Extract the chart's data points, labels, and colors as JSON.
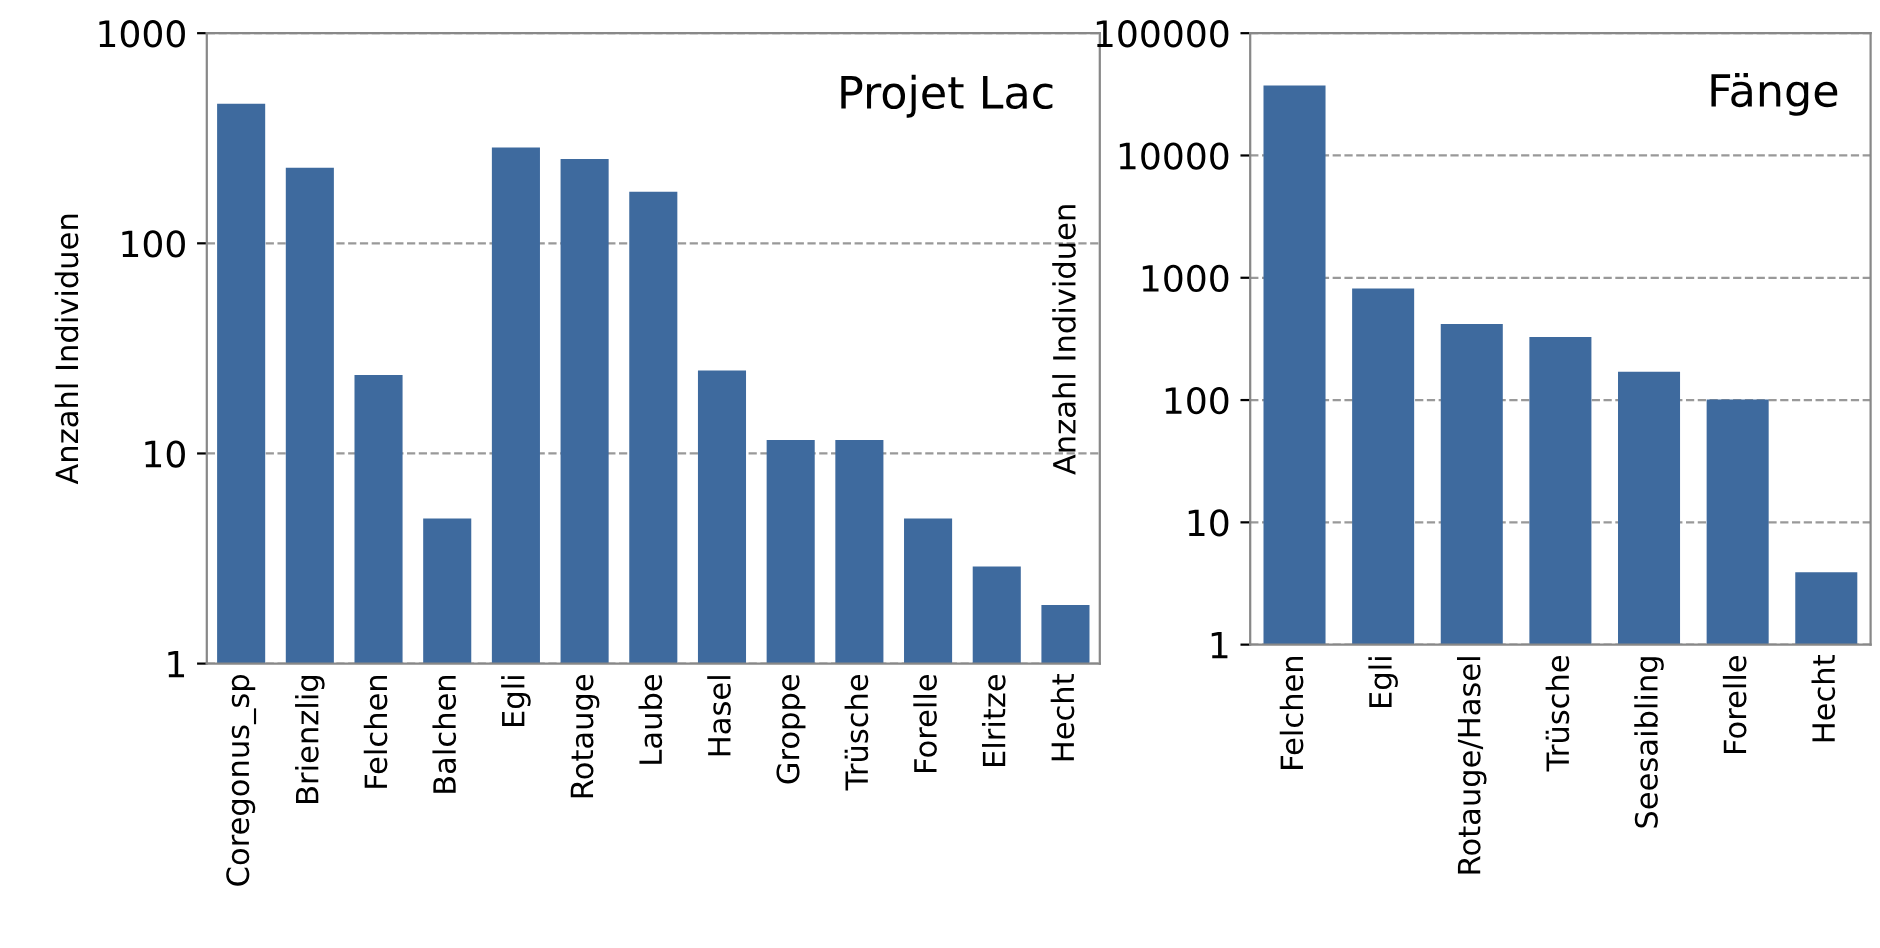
{
  "chart_data": [
    {
      "type": "bar",
      "title": "Projet Lac",
      "ylabel": "Anzahl Individuen",
      "categories": [
        "Coregonus_sp",
        "Brienzlig",
        "Felchen",
        "Balchen",
        "Egli",
        "Rotauge",
        "Laube",
        "Hasel",
        "Groppe",
        "Trüsche",
        "Forelle",
        "Elritze",
        "Hecht"
      ],
      "values": [
        462,
        229,
        23.6,
        4.9,
        286,
        252,
        176,
        24.8,
        11.6,
        11.6,
        4.9,
        2.9,
        1.9
      ],
      "color": "#3e6a9e",
      "log": "y",
      "ylim": [
        1,
        1000
      ],
      "yticks": [
        1,
        10,
        100,
        1000
      ],
      "grid": "y"
    },
    {
      "type": "bar",
      "title": "Fänge",
      "ylabel": "Anzahl Individuen",
      "categories": [
        "Felchen",
        "Egli",
        "Rotauge/Hasel",
        "Trüsche",
        "Seesaibling",
        "Forelle",
        "Hecht"
      ],
      "values": [
        37300,
        817,
        418,
        328,
        170,
        101,
        3.9
      ],
      "color": "#3e6a9e",
      "log": "y",
      "ylim": [
        1,
        100000
      ],
      "yticks": [
        1,
        10,
        100,
        1000,
        10000,
        100000
      ],
      "grid": "y"
    }
  ]
}
